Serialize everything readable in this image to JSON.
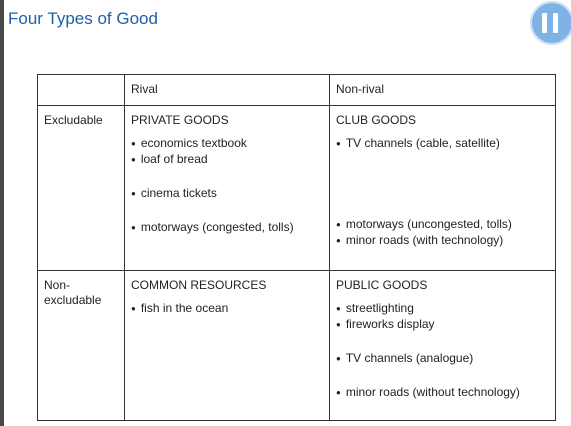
{
  "slide": {
    "title": "Four Types of Good"
  },
  "controls": {
    "pause_icon": "pause-icon"
  },
  "table": {
    "col_headers": [
      "Rival",
      "Non-rival"
    ],
    "rows": [
      {
        "label": "Excludable",
        "cells": [
          {
            "title": "PRIVATE GOODS",
            "items": [
              "economics textbook",
              "loaf of bread",
              "cinema tickets",
              "motorways (congested, tolls)"
            ]
          },
          {
            "title": "CLUB GOODS",
            "items": [
              "TV channels (cable, satellite)",
              "motorways (uncongested, tolls)",
              "minor roads (with technology)"
            ]
          }
        ]
      },
      {
        "label": "Non-excludable",
        "cells": [
          {
            "title": "COMMON RESOURCES",
            "items": [
              "fish in the ocean"
            ]
          },
          {
            "title": "PUBLIC GOODS",
            "items": [
              "streetlighting",
              "fireworks display",
              "TV channels (analogue)",
              "minor roads (without technology)"
            ]
          }
        ]
      }
    ]
  }
}
